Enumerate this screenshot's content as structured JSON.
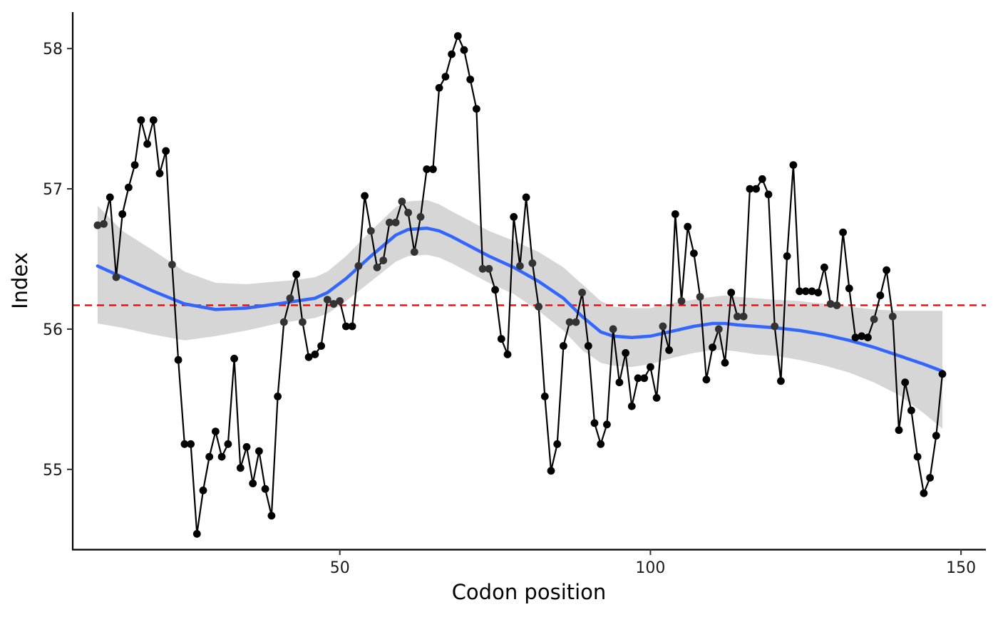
{
  "chart_data": {
    "type": "line",
    "xlabel": "Codon position",
    "ylabel": "Index",
    "xlim": [
      7,
      154
    ],
    "ylim": [
      54.43,
      58.26
    ],
    "x_ticks": [
      50,
      100,
      150
    ],
    "y_ticks": [
      55,
      56,
      57,
      58
    ],
    "grid": false,
    "legend": "none",
    "reference_line": {
      "y": 56.17,
      "style": "dashed",
      "color": "#ff0000"
    },
    "series": [
      {
        "color": "#000000",
        "markers": true,
        "x": [
          11,
          12,
          13,
          14,
          15,
          16,
          17,
          18,
          19,
          20,
          21,
          22,
          23,
          24,
          25,
          26,
          27,
          28,
          29,
          30,
          31,
          32,
          33,
          34,
          35,
          36,
          37,
          38,
          39,
          40,
          41,
          42,
          43,
          44,
          45,
          46,
          47,
          48,
          49,
          50,
          51,
          52,
          53,
          54,
          55,
          56,
          57,
          58,
          59,
          60,
          61,
          62,
          63,
          64,
          65,
          66,
          67,
          68,
          69,
          70,
          71,
          72,
          73,
          74,
          75,
          76,
          77,
          78,
          79,
          80,
          81,
          82,
          83,
          84,
          85,
          86,
          87,
          88,
          89,
          90,
          91,
          92,
          93,
          94,
          95,
          96,
          97,
          98,
          99,
          100,
          101,
          102,
          103,
          104,
          105,
          106,
          107,
          108,
          109,
          110,
          111,
          112,
          113,
          114,
          115,
          116,
          117,
          118,
          119,
          120,
          121,
          122,
          123,
          124,
          125,
          126,
          127,
          128,
          129,
          130,
          131,
          132,
          133,
          134,
          135,
          136,
          137,
          138,
          139,
          140,
          141,
          142,
          143,
          144,
          145,
          146,
          147
        ],
        "values": [
          56.74,
          56.75,
          56.94,
          56.37,
          56.82,
          57.01,
          57.17,
          57.49,
          57.32,
          57.49,
          57.11,
          57.27,
          56.46,
          55.78,
          55.18,
          55.18,
          54.54,
          54.85,
          55.09,
          55.27,
          55.09,
          55.18,
          55.79,
          55.01,
          55.16,
          54.9,
          55.13,
          54.86,
          54.67,
          55.52,
          56.05,
          56.22,
          56.39,
          56.05,
          55.8,
          55.82,
          55.88,
          56.21,
          56.18,
          56.2,
          56.02,
          56.02,
          56.45,
          56.95,
          56.7,
          56.44,
          56.49,
          56.76,
          56.76,
          56.91,
          56.83,
          56.55,
          56.8,
          57.14,
          57.14,
          57.72,
          57.8,
          57.96,
          58.09,
          57.99,
          57.78,
          57.57,
          56.43,
          56.43,
          56.28,
          55.93,
          55.82,
          56.8,
          56.45,
          56.94,
          56.47,
          56.16,
          55.52,
          54.99,
          55.18,
          55.88,
          56.05,
          56.05,
          56.26,
          55.88,
          55.33,
          55.18,
          55.32,
          56.0,
          55.62,
          55.83,
          55.45,
          55.65,
          55.65,
          55.73,
          55.51,
          56.02,
          55.85,
          56.82,
          56.2,
          56.73,
          56.54,
          56.23,
          55.64,
          55.87,
          56.0,
          55.76,
          56.26,
          56.09,
          56.09,
          57.0,
          57.0,
          57.07,
          56.96,
          56.02,
          55.63,
          56.52,
          57.17,
          56.27,
          56.27,
          56.27,
          56.26,
          56.44,
          56.18,
          56.17,
          56.69,
          56.29,
          55.94,
          55.95,
          55.94,
          56.07,
          56.24,
          56.42,
          56.09,
          55.28,
          55.62,
          55.42,
          55.09,
          54.83,
          54.94,
          55.24,
          55.68
        ]
      },
      {
        "type": "smooth",
        "color": "#3366ff",
        "x": [
          11,
          15,
          20,
          25,
          30,
          35,
          40,
          43,
          46,
          48,
          51,
          55,
          59,
          61,
          64,
          66,
          68,
          71,
          74,
          78,
          82,
          86,
          89,
          92,
          94,
          97,
          100,
          104,
          107,
          110,
          112,
          114,
          117,
          120,
          124,
          128,
          132,
          136,
          140,
          144,
          147
        ],
        "values": [
          56.45,
          56.37,
          56.27,
          56.18,
          56.14,
          56.15,
          56.18,
          56.2,
          56.22,
          56.26,
          56.36,
          56.52,
          56.67,
          56.71,
          56.72,
          56.7,
          56.66,
          56.59,
          56.52,
          56.44,
          56.34,
          56.22,
          56.09,
          55.98,
          55.95,
          55.94,
          55.95,
          55.99,
          56.02,
          56.04,
          56.04,
          56.03,
          56.02,
          56.01,
          55.99,
          55.96,
          55.92,
          55.87,
          55.81,
          55.75,
          55.7
        ]
      }
    ],
    "confidence_band": {
      "color": "#d6d6d6",
      "x": [
        11,
        15,
        20,
        25,
        30,
        35,
        40,
        43,
        46,
        48,
        51,
        55,
        59,
        61,
        64,
        66,
        68,
        71,
        74,
        78,
        82,
        86,
        89,
        92,
        94,
        97,
        100,
        104,
        107,
        110,
        112,
        114,
        117,
        120,
        124,
        128,
        132,
        136,
        140,
        144,
        147
      ],
      "lower": [
        56.04,
        56.01,
        55.96,
        55.92,
        55.95,
        55.99,
        56.04,
        56.06,
        56.08,
        56.11,
        56.2,
        56.34,
        56.48,
        56.52,
        56.53,
        56.51,
        56.47,
        56.4,
        56.33,
        56.25,
        56.13,
        55.99,
        55.85,
        55.76,
        55.74,
        55.73,
        55.75,
        55.8,
        55.83,
        55.85,
        55.85,
        55.84,
        55.82,
        55.81,
        55.78,
        55.74,
        55.69,
        55.62,
        55.53,
        55.4,
        55.29
      ],
      "upper": [
        56.88,
        56.7,
        56.56,
        56.41,
        56.33,
        56.32,
        56.34,
        56.35,
        56.37,
        56.41,
        56.52,
        56.7,
        56.87,
        56.91,
        56.92,
        56.89,
        56.84,
        56.77,
        56.7,
        56.63,
        56.55,
        56.44,
        56.32,
        56.2,
        56.16,
        56.15,
        56.15,
        56.19,
        56.21,
        56.23,
        56.24,
        56.23,
        56.22,
        56.21,
        56.2,
        56.18,
        56.16,
        56.14,
        56.13,
        56.13,
        56.13
      ]
    }
  }
}
